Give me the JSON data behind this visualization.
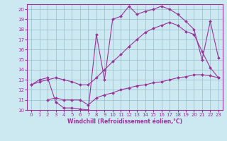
{
  "background_color": "#cce8f0",
  "grid_color": "#99bbcc",
  "line_color": "#993399",
  "xlim": [
    -0.5,
    23.5
  ],
  "ylim": [
    10,
    20.5
  ],
  "xticks": [
    0,
    1,
    2,
    3,
    4,
    5,
    6,
    7,
    8,
    9,
    10,
    11,
    12,
    13,
    14,
    15,
    16,
    17,
    18,
    19,
    20,
    21,
    22,
    23
  ],
  "yticks": [
    10,
    11,
    12,
    13,
    14,
    15,
    16,
    17,
    18,
    19,
    20
  ],
  "xlabel": "Windchill (Refroidissement éolien,°C)",
  "curve1_x": [
    0,
    1,
    2,
    3,
    4,
    5,
    6,
    7,
    8,
    9,
    10,
    11,
    12,
    13,
    14,
    15,
    16,
    17,
    18,
    19,
    20,
    21,
    22,
    23
  ],
  "curve1_y": [
    12.5,
    12.8,
    13.0,
    13.2,
    13.0,
    12.8,
    12.5,
    12.5,
    13.2,
    14.0,
    14.8,
    15.5,
    16.3,
    17.0,
    17.7,
    18.1,
    18.4,
    18.7,
    18.4,
    17.8,
    17.5,
    15.8,
    14.2,
    13.2
  ],
  "curve2_x": [
    0,
    1,
    2,
    3,
    4,
    5,
    6,
    7,
    8,
    9,
    10,
    11,
    12,
    13,
    14,
    15,
    16,
    17,
    18,
    19,
    20,
    21,
    22,
    23
  ],
  "curve2_y": [
    12.5,
    13.0,
    13.2,
    10.8,
    10.2,
    10.2,
    10.1,
    10.0,
    17.5,
    13.0,
    19.0,
    19.3,
    20.3,
    19.5,
    19.8,
    20.0,
    20.3,
    20.0,
    19.5,
    18.8,
    18.0,
    15.0,
    18.8,
    15.2
  ],
  "curve3_x": [
    2,
    3,
    4,
    5,
    6,
    7,
    8,
    9,
    10,
    11,
    12,
    13,
    14,
    15,
    16,
    17,
    18,
    19,
    20,
    21,
    22,
    23
  ],
  "curve3_y": [
    11.0,
    11.2,
    11.0,
    11.0,
    11.0,
    10.5,
    11.2,
    11.5,
    11.7,
    12.0,
    12.2,
    12.4,
    12.5,
    12.7,
    12.8,
    13.0,
    13.2,
    13.3,
    13.5,
    13.5,
    13.4,
    13.2
  ],
  "tick_fontsize": 5,
  "xlabel_fontsize": 5.5
}
